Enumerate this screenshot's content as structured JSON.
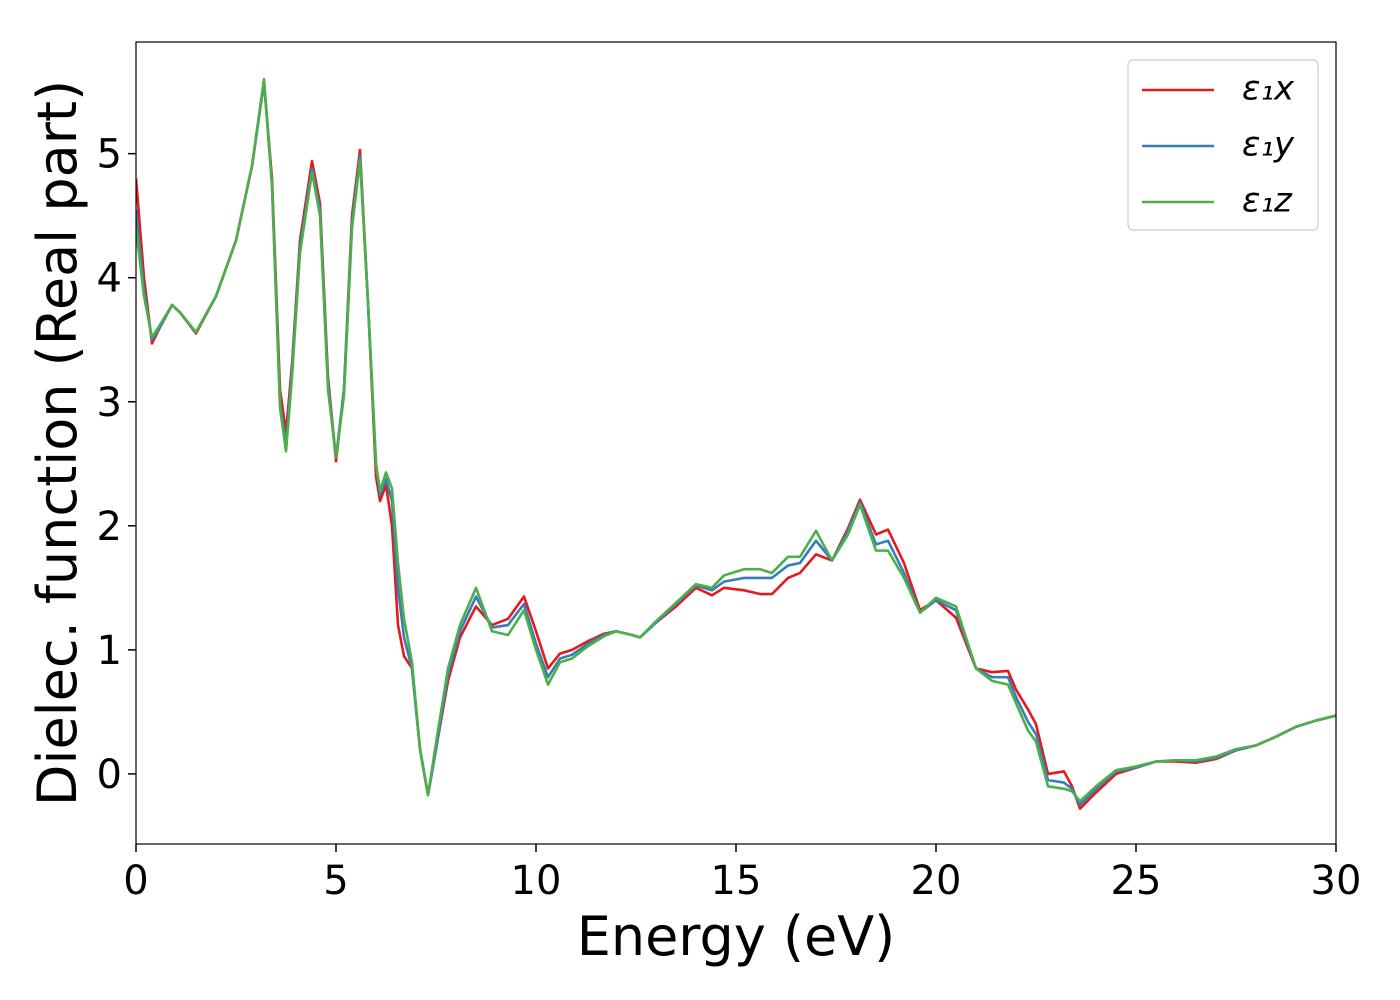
{
  "chart_data": {
    "type": "line",
    "x_label": "Energy (eV)",
    "y_label": "Dielec. function (Real part)",
    "xlim": [
      0,
      30
    ],
    "xticks": [
      0,
      5,
      10,
      15,
      20,
      25,
      30
    ],
    "ylim": [
      -0.565,
      5.9
    ],
    "yticks": [
      0,
      1,
      2,
      3,
      4,
      5
    ],
    "legend": "upper right",
    "grid": false,
    "x": [
      0,
      0.2,
      0.4,
      0.6,
      0.9,
      1.1,
      1.5,
      2.0,
      2.5,
      2.9,
      3.2,
      3.4,
      3.6,
      3.75,
      3.9,
      4.1,
      4.4,
      4.6,
      4.8,
      5.0,
      5.2,
      5.4,
      5.6,
      5.8,
      6.0,
      6.1,
      6.25,
      6.4,
      6.55,
      6.7,
      6.9,
      7.1,
      7.3,
      7.5,
      7.8,
      8.1,
      8.5,
      8.9,
      9.3,
      9.7,
      10.0,
      10.3,
      10.6,
      10.9,
      11.3,
      11.7,
      12.0,
      12.4,
      12.6,
      13.0,
      13.5,
      14.0,
      14.4,
      14.7,
      15.2,
      15.6,
      15.9,
      16.3,
      16.6,
      17.0,
      17.4,
      17.8,
      18.1,
      18.5,
      18.8,
      19.2,
      19.6,
      20.0,
      20.5,
      21.0,
      21.4,
      21.8,
      22.0,
      22.3,
      22.5,
      22.8,
      23.2,
      23.4,
      23.6,
      24.0,
      24.5,
      25.0,
      25.5,
      26.0,
      26.5,
      27.0,
      27.5,
      28.0,
      28.5,
      29.0,
      29.5,
      30.0
    ],
    "series": [
      {
        "name": "ε₁x",
        "color": "#e41a1c",
        "values": [
          4.8,
          4.0,
          3.47,
          3.6,
          3.78,
          3.72,
          3.55,
          3.85,
          4.3,
          4.9,
          5.58,
          4.8,
          3.1,
          2.75,
          3.3,
          4.3,
          4.94,
          4.6,
          3.2,
          2.52,
          3.1,
          4.5,
          5.03,
          3.8,
          2.4,
          2.2,
          2.33,
          2.0,
          1.2,
          0.95,
          0.85,
          0.2,
          -0.17,
          0.2,
          0.75,
          1.1,
          1.35,
          1.2,
          1.25,
          1.43,
          1.15,
          0.85,
          0.97,
          1.0,
          1.07,
          1.13,
          1.15,
          1.12,
          1.1,
          1.22,
          1.35,
          1.5,
          1.44,
          1.5,
          1.48,
          1.45,
          1.45,
          1.58,
          1.62,
          1.77,
          1.72,
          1.98,
          2.21,
          1.93,
          1.97,
          1.7,
          1.32,
          1.4,
          1.26,
          0.85,
          0.82,
          0.83,
          0.68,
          0.52,
          0.4,
          0.0,
          0.02,
          -0.1,
          -0.28,
          -0.15,
          0.0,
          0.05,
          0.1,
          0.1,
          0.09,
          0.12,
          0.19,
          0.23,
          0.3,
          0.38,
          0.43,
          0.47
        ]
      },
      {
        "name": "ε₁y",
        "color": "#377eb8",
        "values": [
          4.55,
          3.9,
          3.5,
          3.6,
          3.78,
          3.72,
          3.56,
          3.85,
          4.3,
          4.9,
          5.58,
          4.75,
          3.0,
          2.65,
          3.25,
          4.25,
          4.88,
          4.55,
          3.15,
          2.55,
          3.1,
          4.45,
          4.98,
          3.8,
          2.5,
          2.25,
          2.38,
          2.2,
          1.5,
          1.1,
          0.85,
          0.2,
          -0.17,
          0.2,
          0.8,
          1.15,
          1.43,
          1.18,
          1.2,
          1.37,
          1.05,
          0.78,
          0.93,
          0.96,
          1.05,
          1.12,
          1.15,
          1.12,
          1.1,
          1.22,
          1.37,
          1.52,
          1.48,
          1.55,
          1.58,
          1.58,
          1.58,
          1.68,
          1.7,
          1.88,
          1.72,
          1.96,
          2.19,
          1.85,
          1.88,
          1.62,
          1.3,
          1.4,
          1.32,
          0.85,
          0.78,
          0.78,
          0.62,
          0.42,
          0.32,
          -0.05,
          -0.07,
          -0.12,
          -0.25,
          -0.12,
          0.02,
          0.05,
          0.1,
          0.11,
          0.1,
          0.13,
          0.19,
          0.23,
          0.3,
          0.38,
          0.43,
          0.47
        ]
      },
      {
        "name": "ε₁z",
        "color": "#4daf4a",
        "values": [
          4.4,
          3.85,
          3.52,
          3.62,
          3.78,
          3.72,
          3.56,
          3.85,
          4.3,
          4.9,
          5.6,
          4.75,
          2.95,
          2.6,
          3.2,
          4.2,
          4.85,
          4.5,
          3.1,
          2.55,
          3.05,
          4.4,
          4.95,
          3.8,
          2.5,
          2.28,
          2.43,
          2.3,
          1.7,
          1.25,
          0.9,
          0.2,
          -0.17,
          0.25,
          0.85,
          1.2,
          1.5,
          1.15,
          1.12,
          1.32,
          1.0,
          0.72,
          0.9,
          0.93,
          1.03,
          1.11,
          1.15,
          1.12,
          1.1,
          1.23,
          1.38,
          1.53,
          1.5,
          1.6,
          1.65,
          1.65,
          1.62,
          1.75,
          1.75,
          1.96,
          1.72,
          1.93,
          2.17,
          1.8,
          1.8,
          1.58,
          1.3,
          1.42,
          1.35,
          0.85,
          0.75,
          0.72,
          0.57,
          0.35,
          0.26,
          -0.1,
          -0.12,
          -0.14,
          -0.22,
          -0.1,
          0.03,
          0.06,
          0.1,
          0.11,
          0.11,
          0.14,
          0.2,
          0.23,
          0.3,
          0.38,
          0.43,
          0.47
        ]
      }
    ]
  }
}
